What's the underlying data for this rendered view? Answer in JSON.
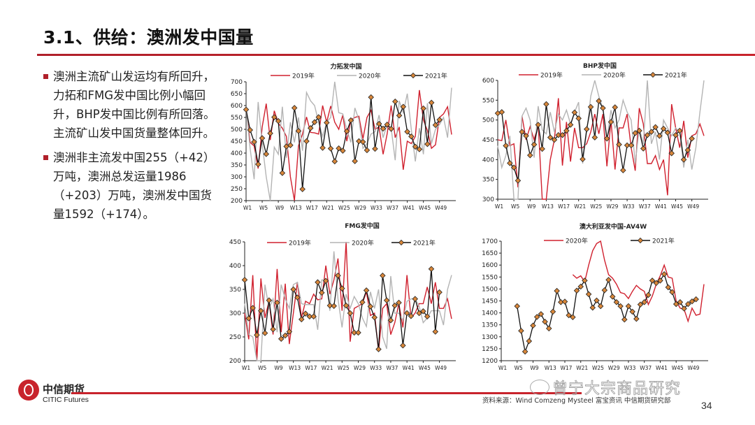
{
  "header": {
    "title": "3.1、供给：澳洲发中国量"
  },
  "bullets": [
    "澳洲主流矿山发运均有所回升，力拓和FMG发中国比例小幅回升，BHP发中国比例有所回落。主流矿山发中国货量整体回升。",
    "澳洲非主流发中国255（+42）万吨，澳洲总发运量1986（+203）万吨，澳洲发中国货量1592（+174）。"
  ],
  "footer": {
    "brand_cn": "中信期货",
    "brand_en": "CITIC Futures",
    "source": "资料来源：Wind Comzeng Mysteel 富宝资讯 中信期货研究部",
    "page": "34",
    "watermark": "曾宁大宗商品研究"
  },
  "colors": {
    "2019": "#d0202e",
    "2020": "#b4b4b4",
    "2021": "#111111",
    "marker": "#d9873a",
    "accent": "#c8232c"
  },
  "chart_data": [
    {
      "type": "line",
      "title": "力拓发中国",
      "ylim": [
        200,
        700
      ],
      "yticks": [
        200,
        250,
        300,
        350,
        400,
        450,
        500,
        550,
        600,
        650,
        700
      ],
      "xticks": [
        "W1",
        "W5",
        "W9",
        "W13",
        "W17",
        "W21",
        "W25",
        "W29",
        "W33",
        "W37",
        "W41",
        "W45",
        "W49"
      ],
      "series": [
        {
          "name": "2019年",
          "start_week": 1,
          "values": [
            590,
            445,
            430,
            335,
            510,
            608,
            455,
            578,
            525,
            505,
            470,
            300,
            200,
            430,
            480,
            552,
            487,
            485,
            480,
            600,
            530,
            598,
            530,
            500,
            560,
            450,
            540,
            550,
            555,
            460,
            550,
            580,
            500,
            510,
            395,
            480,
            600,
            465,
            510,
            330,
            450,
            440,
            470,
            665,
            540,
            495,
            420,
            435,
            550,
            565,
            595,
            478
          ]
        },
        {
          "name": "2020年",
          "start_week": 1,
          "values": [
            590,
            420,
            290,
            615,
            440,
            300,
            200,
            425,
            395,
            595,
            380,
            530,
            445,
            550,
            410,
            655,
            620,
            600,
            530,
            470,
            530,
            550,
            700,
            570,
            565,
            500,
            445,
            590,
            540,
            420,
            440,
            480,
            490,
            560,
            465,
            520,
            505,
            370,
            620,
            570,
            650,
            500,
            365,
            505,
            395,
            610,
            440,
            500,
            520,
            550,
            465,
            675
          ]
        },
        {
          "name": "2021年",
          "start_week": 1,
          "values": [
            583,
            497,
            447,
            353,
            463,
            396,
            483,
            551,
            535,
            316,
            428,
            433,
            590,
            493,
            248,
            450,
            505,
            530,
            551,
            422,
            528,
            419,
            365,
            420,
            410,
            492,
            538,
            366,
            450,
            447,
            412,
            635,
            418,
            523,
            503,
            520,
            502,
            617,
            558,
            595,
            490,
            470,
            427,
            416,
            588,
            438,
            612,
            518,
            540
          ]
        }
      ]
    },
    {
      "type": "line",
      "title": "BHP发中国",
      "ylim": [
        300,
        600
      ],
      "yticks": [
        300,
        350,
        400,
        450,
        500,
        550,
        600
      ],
      "xticks": [
        "W1",
        "W5",
        "W9",
        "W13",
        "W17",
        "W21",
        "W25",
        "W29",
        "W33",
        "W37",
        "W41",
        "W45",
        "W49"
      ],
      "series": [
        {
          "name": "2019年",
          "start_week": 1,
          "values": [
            450,
            448,
            500,
            435,
            440,
            330,
            510,
            450,
            483,
            450,
            490,
            300,
            280,
            400,
            450,
            555,
            385,
            495,
            395,
            480,
            430,
            430,
            440,
            470,
            515,
            465,
            515,
            383,
            500,
            375,
            480,
            480,
            515,
            430,
            372,
            530,
            490,
            390,
            390,
            410,
            375,
            400,
            310,
            540,
            480,
            430,
            498,
            405,
            460,
            465,
            490,
            460
          ]
        },
        {
          "name": "2020年",
          "start_week": 1,
          "values": [
            435,
            380,
            410,
            460,
            300,
            300,
            510,
            530,
            500,
            405,
            535,
            475,
            465,
            520,
            470,
            515,
            500,
            525,
            490,
            520,
            545,
            390,
            470,
            560,
            600,
            560,
            530,
            450,
            525,
            480,
            500,
            550,
            520,
            500,
            390,
            480,
            440,
            600,
            440,
            470,
            400,
            500,
            480,
            460,
            480,
            470,
            380,
            450,
            375,
            430,
            520,
            600
          ]
        },
        {
          "name": "2021年",
          "start_week": 1,
          "values": [
            517,
            520,
            435,
            391,
            380,
            347,
            470,
            460,
            411,
            438,
            488,
            427,
            540,
            456,
            450,
            462,
            462,
            473,
            488,
            519,
            504,
            401,
            477,
            533,
            456,
            548,
            530,
            453,
            495,
            532,
            438,
            373,
            436,
            436,
            467,
            473,
            428,
            462,
            470,
            482,
            460,
            478,
            468,
            416,
            462,
            473,
            400,
            424,
            453
          ]
        }
      ]
    },
    {
      "type": "line",
      "title": "FMG发中国",
      "ylim": [
        200,
        450
      ],
      "yticks": [
        200,
        250,
        300,
        350,
        400,
        450
      ],
      "xticks": [
        "W1",
        "W5",
        "W9",
        "W13",
        "W17",
        "W21",
        "W25",
        "W29",
        "W33",
        "W37",
        "W41",
        "W45",
        "W49"
      ],
      "series": [
        {
          "name": "2019年",
          "start_week": 1,
          "values": [
            300,
            245,
            380,
            200,
            373,
            290,
            325,
            255,
            393,
            260,
            362,
            235,
            300,
            365,
            290,
            325,
            320,
            340,
            328,
            330,
            400,
            340,
            370,
            415,
            305,
            450,
            240,
            310,
            315,
            320,
            345,
            295,
            300,
            220,
            310,
            320,
            255,
            280,
            320,
            270,
            380,
            290,
            300,
            320,
            320,
            355,
            320,
            365,
            310,
            310,
            330,
            288
          ]
        },
        {
          "name": "2020年",
          "start_week": 1,
          "values": [
            320,
            255,
            250,
            200,
            200,
            360,
            310,
            330,
            260,
            360,
            330,
            310,
            360,
            365,
            320,
            318,
            318,
            318,
            265,
            370,
            370,
            305,
            430,
            330,
            270,
            340,
            310,
            335,
            320,
            290,
            272,
            345,
            310,
            350,
            250,
            225,
            378,
            300,
            300,
            285,
            325,
            330,
            330,
            315,
            280,
            290,
            305,
            305,
            305,
            275,
            350,
            380
          ]
        },
        {
          "name": "2021年",
          "start_week": 1,
          "values": [
            370,
            289,
            311,
            254,
            305,
            258,
            327,
            266,
            322,
            246,
            253,
            261,
            350,
            333,
            287,
            299,
            293,
            293,
            365,
            343,
            368,
            316,
            315,
            379,
            352,
            316,
            300,
            259,
            259,
            323,
            348,
            314,
            291,
            224,
            379,
            327,
            285,
            316,
            322,
            232,
            300,
            294,
            330,
            300,
            304,
            293,
            393,
            261,
            344
          ]
        }
      ]
    },
    {
      "type": "line",
      "title": "澳大利亚发中国-AV4W",
      "ylim": [
        1200,
        1700
      ],
      "yticks": [
        1200,
        1250,
        1300,
        1350,
        1400,
        1450,
        1500,
        1550,
        1600,
        1650,
        1700
      ],
      "xticks": [
        "W1",
        "W5",
        "W9",
        "W13",
        "W17",
        "W21",
        "W25",
        "W29",
        "W33",
        "W37",
        "W41",
        "W45",
        "W49"
      ],
      "series": [
        {
          "name": "2020年",
          "start_week": 19,
          "values": [
            1560,
            1545,
            1555,
            1530,
            1600,
            1660,
            1690,
            1700,
            1620,
            1560,
            1545,
            1520,
            1485,
            1480,
            1460,
            1490,
            1515,
            1500,
            1490,
            1435,
            1470,
            1520,
            1555,
            1600,
            1550,
            1545,
            1450,
            1420,
            1415,
            1365,
            1420,
            1390,
            1395,
            1520
          ]
        },
        {
          "name": "2021年",
          "start_week": 5,
          "values": [
            1428,
            1325,
            1238,
            1282,
            1347,
            1383,
            1395,
            1363,
            1335,
            1405,
            1492,
            1445,
            1447,
            1390,
            1382,
            1493,
            1510,
            1535,
            1478,
            1422,
            1452,
            1428,
            1495,
            1538,
            1468,
            1445,
            1428,
            1372,
            1428,
            1405,
            1375,
            1435,
            1445,
            1475,
            1535,
            1525,
            1535,
            1562,
            1507,
            1487,
            1437,
            1445,
            1418,
            1437,
            1448,
            1457
          ]
        }
      ]
    }
  ]
}
